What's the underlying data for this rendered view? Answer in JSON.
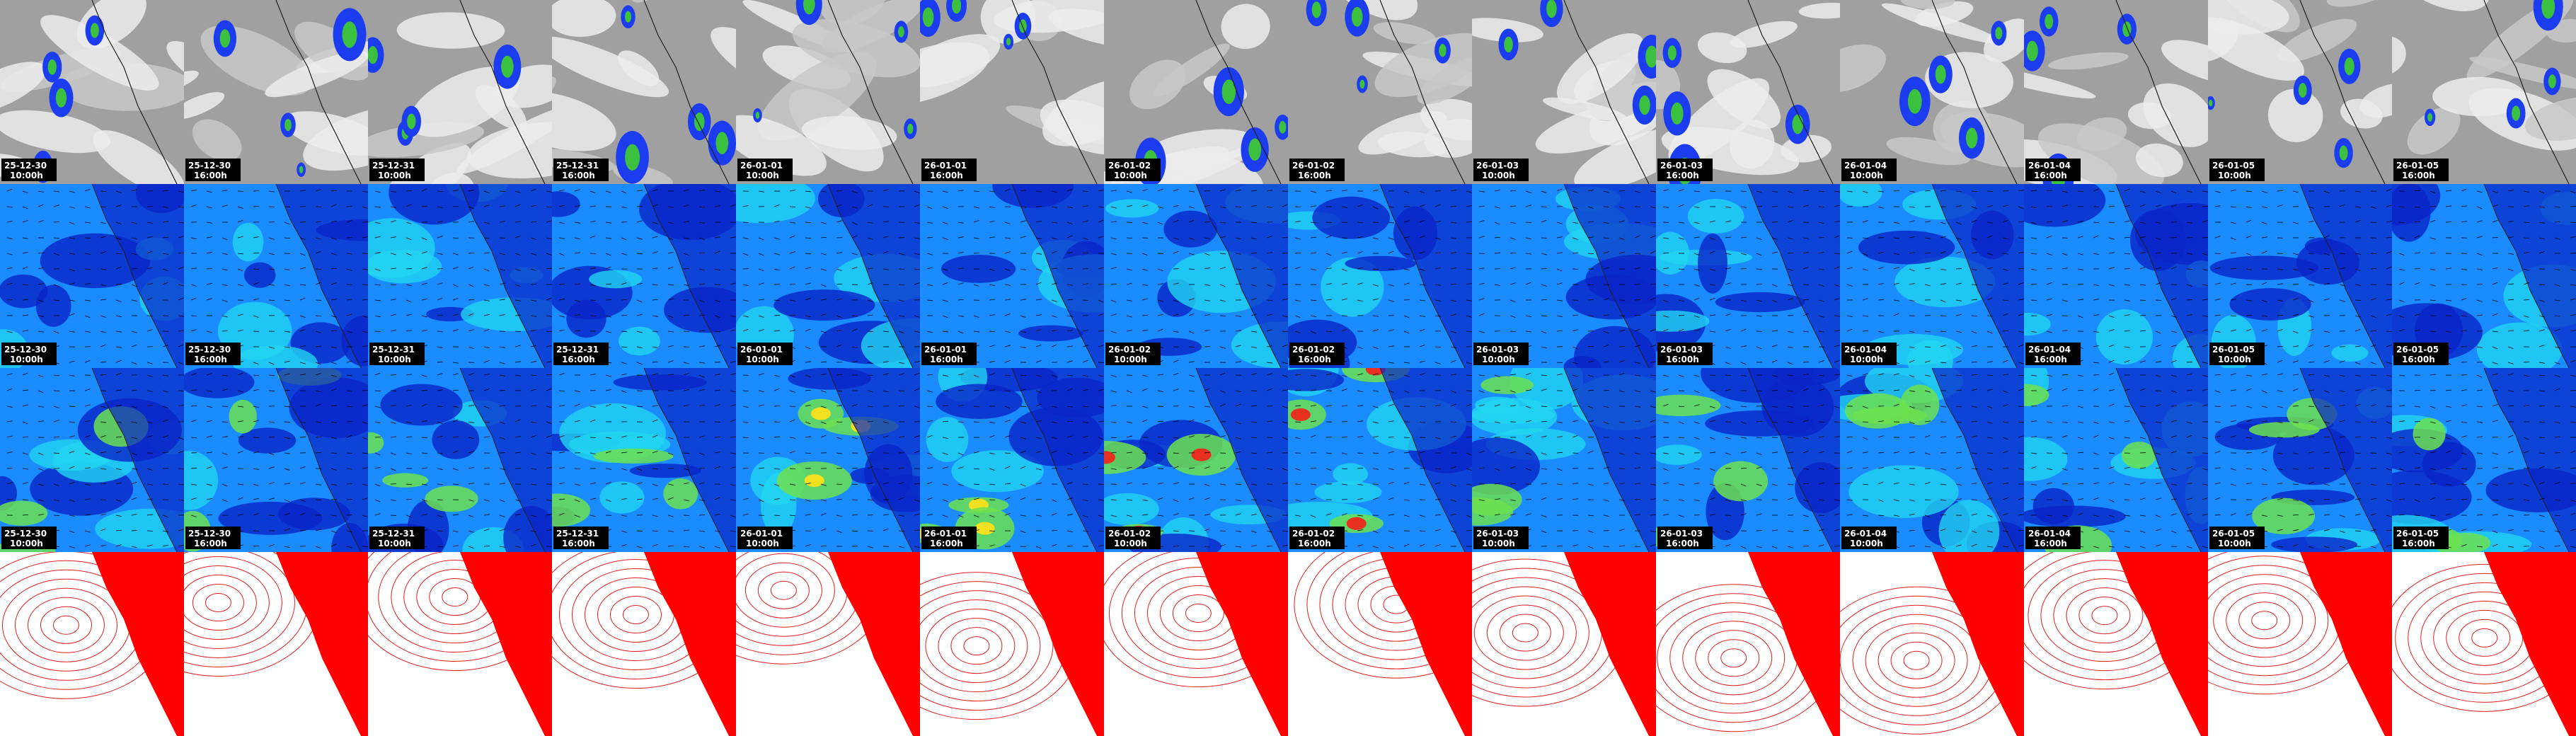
{
  "rows": [
    {
      "panels": [
        {
          "date": "25-12-30",
          "time": "10:00h"
        },
        {
          "date": "25-12-30",
          "time": "16:00h"
        },
        {
          "date": "25-12-31",
          "time": "10:00h"
        },
        {
          "date": "25-12-31",
          "time": "16:00h"
        },
        {
          "date": "26-01-01",
          "time": "10:00h"
        },
        {
          "date": "26-01-01",
          "time": "16:00h"
        },
        {
          "date": "26-01-02",
          "time": "10:00h"
        },
        {
          "date": "26-01-02",
          "time": "16:00h"
        },
        {
          "date": "26-01-03",
          "time": "10:00h"
        },
        {
          "date": "26-01-03",
          "time": "16:00h"
        },
        {
          "date": "26-01-04",
          "time": "10:00h"
        },
        {
          "date": "26-01-04",
          "time": "16:00h"
        },
        {
          "date": "26-01-05",
          "time": "10:00h"
        },
        {
          "date": "26-01-05",
          "time": "16:00h"
        }
      ]
    },
    {
      "panels": [
        {
          "date": "25-12-30",
          "time": "10:00h"
        },
        {
          "date": "25-12-30",
          "time": "16:00h"
        },
        {
          "date": "25-12-31",
          "time": "10:00h"
        },
        {
          "date": "25-12-31",
          "time": "16:00h"
        },
        {
          "date": "26-01-01",
          "time": "10:00h"
        },
        {
          "date": "26-01-01",
          "time": "16:00h"
        },
        {
          "date": "26-01-02",
          "time": "10:00h"
        },
        {
          "date": "26-01-02",
          "time": "16:00h"
        },
        {
          "date": "26-01-03",
          "time": "10:00h"
        },
        {
          "date": "26-01-03",
          "time": "16:00h"
        },
        {
          "date": "26-01-04",
          "time": "10:00h"
        },
        {
          "date": "26-01-04",
          "time": "16:00h"
        },
        {
          "date": "26-01-05",
          "time": "10:00h"
        },
        {
          "date": "26-01-05",
          "time": "16:00h"
        }
      ]
    },
    {
      "panels": [
        {
          "date": "25-12-30",
          "time": "10:00h"
        },
        {
          "date": "25-12-30",
          "time": "16:00h"
        },
        {
          "date": "25-12-31",
          "time": "10:00h"
        },
        {
          "date": "25-12-31",
          "time": "16:00h"
        },
        {
          "date": "26-01-01",
          "time": "10:00h"
        },
        {
          "date": "26-01-01",
          "time": "16:00h"
        },
        {
          "date": "26-01-02",
          "time": "10:00h"
        },
        {
          "date": "26-01-02",
          "time": "16:00h"
        },
        {
          "date": "26-01-03",
          "time": "10:00h"
        },
        {
          "date": "26-01-03",
          "time": "16:00h"
        },
        {
          "date": "26-01-04",
          "time": "10:00h"
        },
        {
          "date": "26-01-04",
          "time": "16:00h"
        },
        {
          "date": "26-01-05",
          "time": "10:00h"
        },
        {
          "date": "26-01-05",
          "time": "16:00h"
        }
      ]
    }
  ]
}
